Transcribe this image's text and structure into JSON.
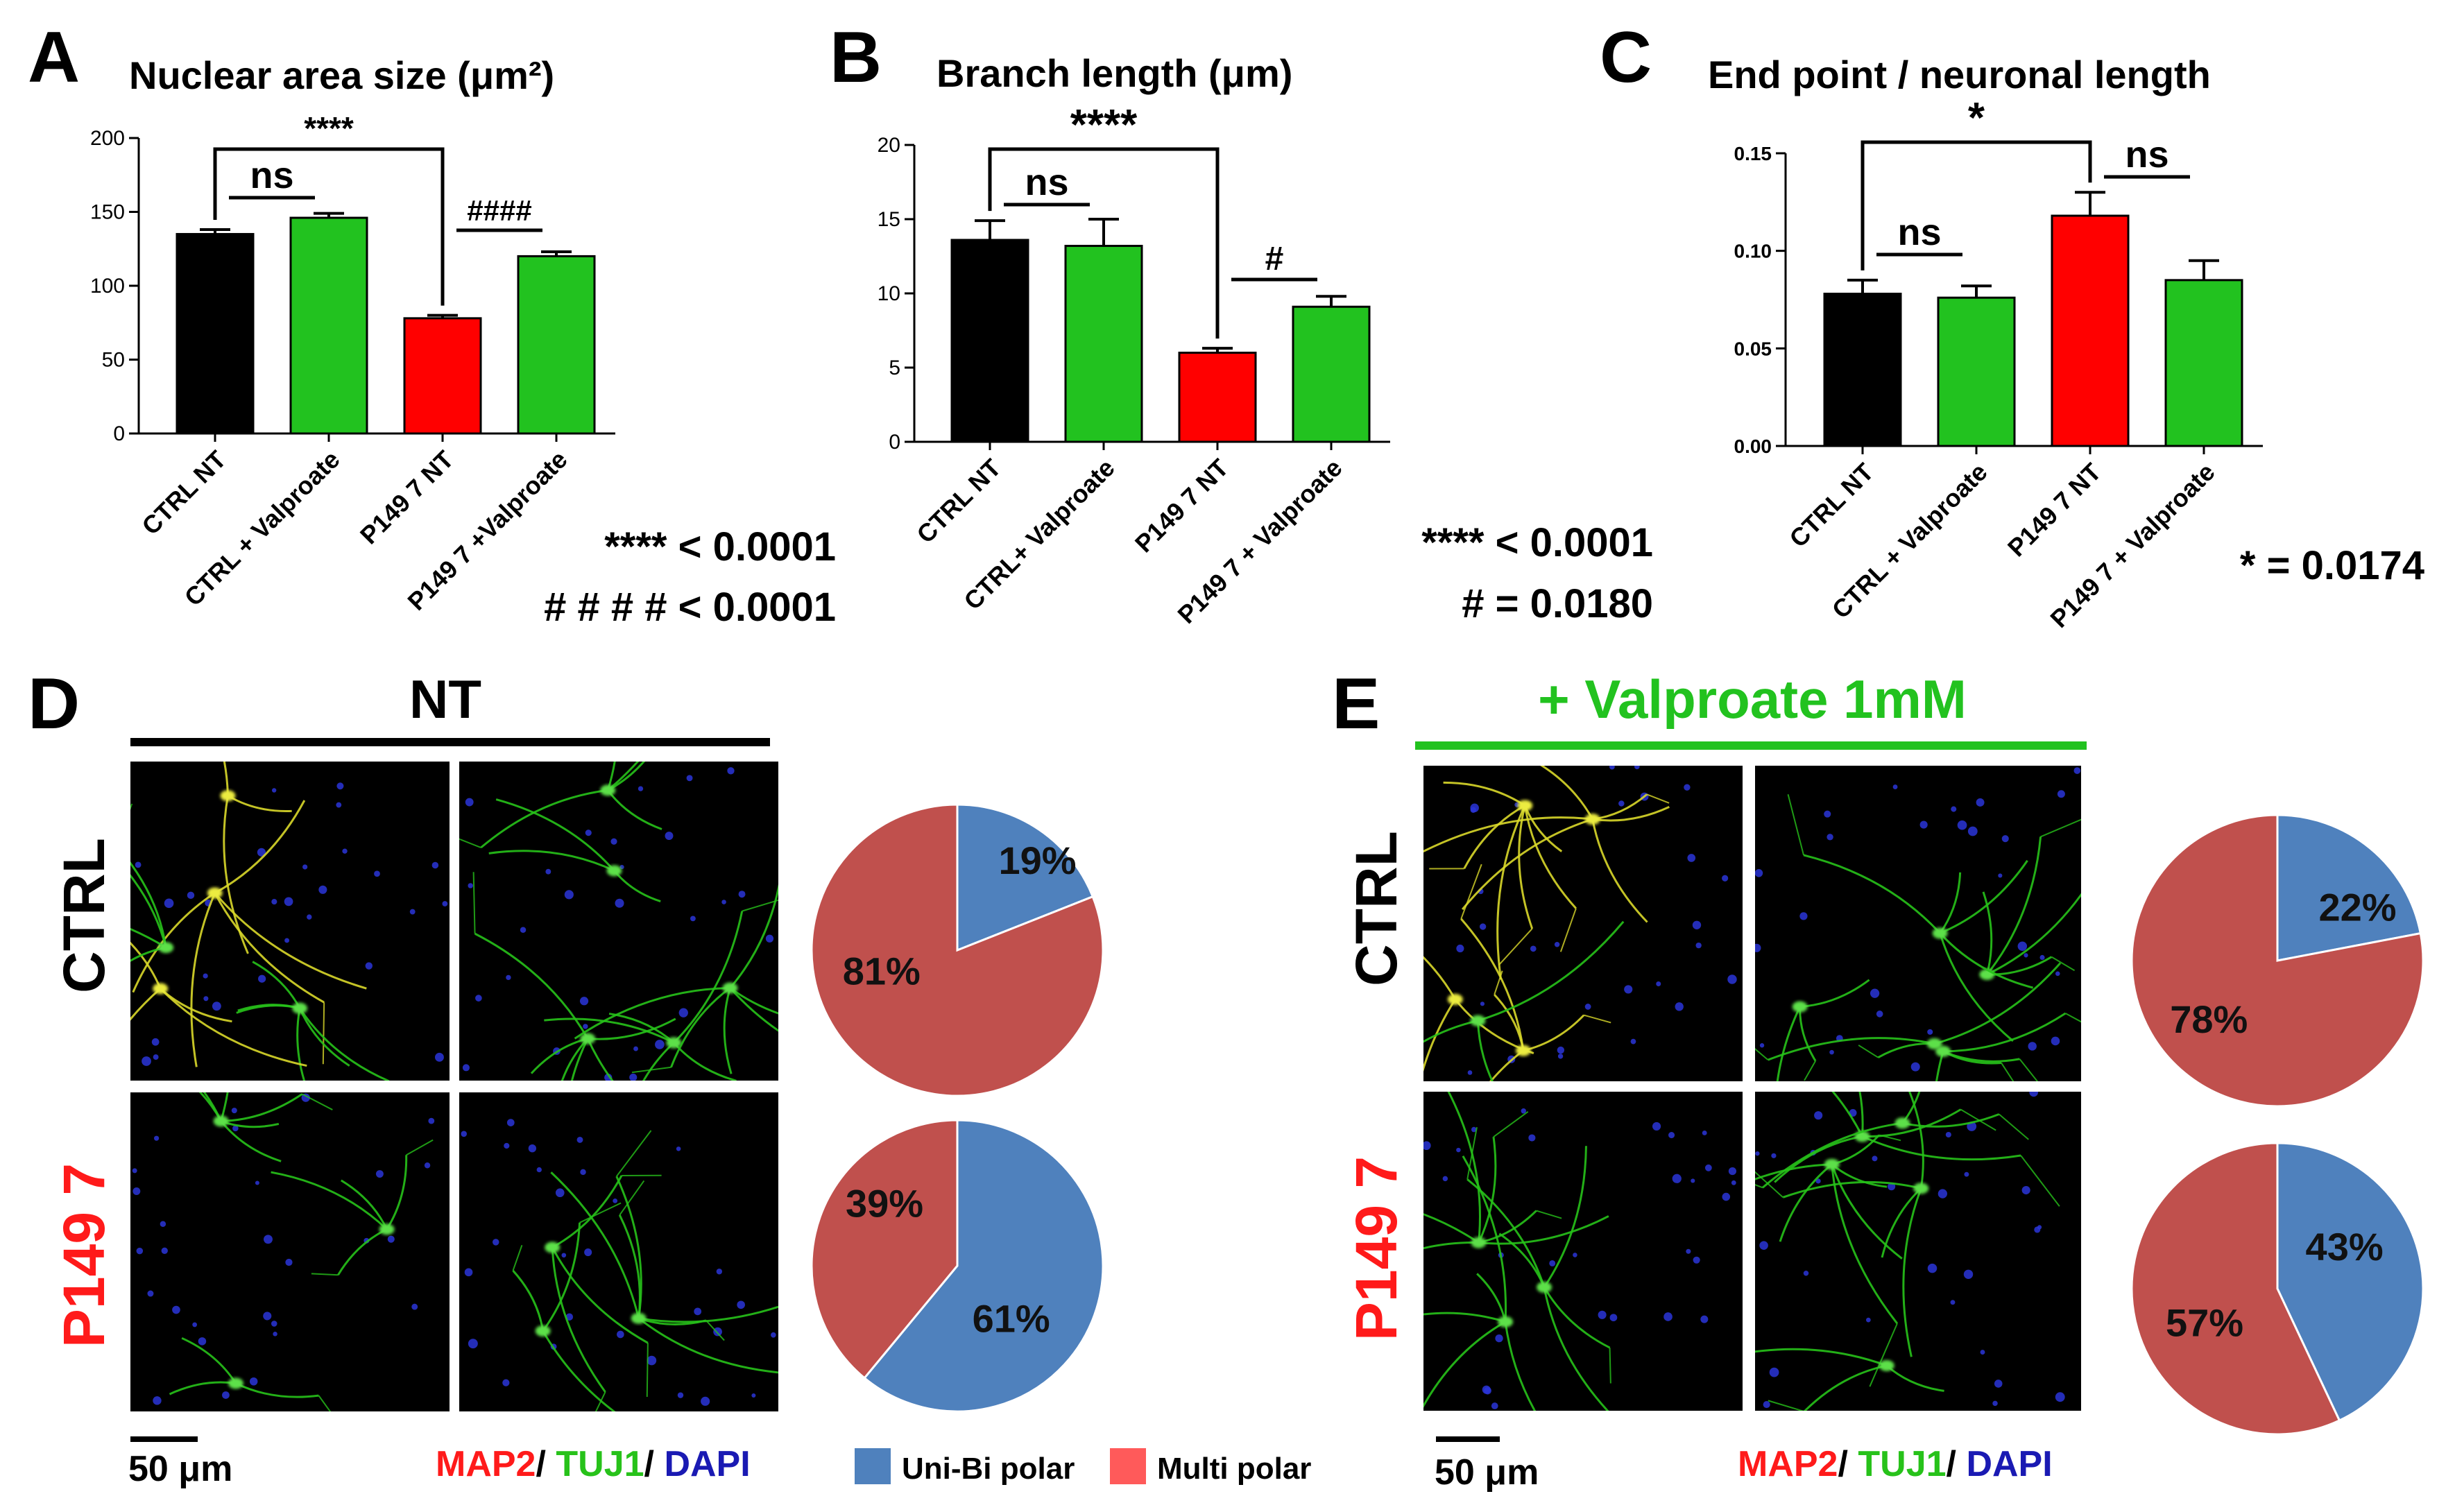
{
  "colors": {
    "black": "#000000",
    "green": "#22c21f",
    "red": "#ff0000",
    "pie_blue": "#4f81bd",
    "pie_red": "#c0504d",
    "label_red": "#ff1a1a",
    "label_green": "#27c21a",
    "label_blue": "#1a1ab3"
  },
  "chart_data": [
    {
      "panel": "A",
      "type": "bar",
      "title": "Nuclear area size (μm²)",
      "categories": [
        "CTRL NT",
        "CTRL + Valproate",
        "P149 7 NT",
        "P149 7 +Valproate"
      ],
      "values": [
        135,
        146,
        78,
        120
      ],
      "errors": [
        3,
        3,
        2,
        3
      ],
      "bar_colors": [
        "#000000",
        "#22c21f",
        "#ff0000",
        "#22c21f"
      ],
      "ylim": [
        0,
        200
      ],
      "yticks": [
        0,
        50,
        100,
        150,
        200
      ],
      "ytick_labels": [
        "0",
        "50",
        "100",
        "150",
        "200"
      ],
      "brackets": [
        {
          "from": 0,
          "to": 1,
          "label": "ns"
        },
        {
          "from": 0,
          "to": 2,
          "label": "****"
        },
        {
          "from": 2,
          "to": 3,
          "label": "####"
        }
      ],
      "notes": [
        "**** < 0.0001",
        "# # # # < 0.0001"
      ]
    },
    {
      "panel": "B",
      "type": "bar",
      "title": "Branch length (μm)",
      "categories": [
        "CTRL NT",
        "CTRL+ Valproate",
        "P149 7 NT",
        "P149 7 + Valproate"
      ],
      "values": [
        13.6,
        13.2,
        6.0,
        9.1
      ],
      "errors": [
        1.3,
        1.8,
        0.3,
        0.7
      ],
      "bar_colors": [
        "#000000",
        "#22c21f",
        "#ff0000",
        "#22c21f"
      ],
      "ylim": [
        0,
        20
      ],
      "yticks": [
        0,
        5,
        10,
        15,
        20
      ],
      "ytick_labels": [
        "0",
        "5",
        "10",
        "15",
        "20"
      ],
      "brackets": [
        {
          "from": 0,
          "to": 1,
          "label": "ns"
        },
        {
          "from": 0,
          "to": 2,
          "label": "****"
        },
        {
          "from": 2,
          "to": 3,
          "label": "#"
        }
      ],
      "notes": [
        "**** < 0.0001",
        "# = 0.0180"
      ]
    },
    {
      "panel": "C",
      "type": "bar",
      "title": "End point / neuronal length",
      "categories": [
        "CTRL NT",
        "CTRL + Valproate",
        "P149 7 NT",
        "P149 7  + Valproate"
      ],
      "values": [
        0.078,
        0.076,
        0.118,
        0.085
      ],
      "errors": [
        0.007,
        0.006,
        0.012,
        0.01
      ],
      "bar_colors": [
        "#000000",
        "#22c21f",
        "#ff0000",
        "#22c21f"
      ],
      "ylim": [
        0,
        0.15
      ],
      "yticks": [
        0,
        0.05,
        0.1,
        0.15
      ],
      "ytick_labels": [
        "0.00",
        "0.05",
        "0.10",
        "0.15"
      ],
      "brackets": [
        {
          "from": 0,
          "to": 1,
          "label": "ns"
        },
        {
          "from": 0,
          "to": 2,
          "label": "*"
        },
        {
          "from": 2,
          "to": 3,
          "label": "ns"
        }
      ],
      "notes": [
        "* = 0.0174"
      ]
    },
    {
      "panel": "D-CTRL",
      "type": "pie",
      "labels": [
        "Uni-Bi polar",
        "Multi polar"
      ],
      "values": [
        19,
        81
      ],
      "value_labels": [
        "19%",
        "81%"
      ]
    },
    {
      "panel": "D-P149 7",
      "type": "pie",
      "labels": [
        "Uni-Bi polar",
        "Multi polar"
      ],
      "values": [
        61,
        39
      ],
      "value_labels": [
        "61%",
        "39%"
      ]
    },
    {
      "panel": "E-CTRL",
      "type": "pie",
      "labels": [
        "Uni-Bi polar",
        "Multi polar"
      ],
      "values": [
        22,
        78
      ],
      "value_labels": [
        "22%",
        "78%"
      ]
    },
    {
      "panel": "E-P149 7",
      "type": "pie",
      "labels": [
        "Uni-Bi polar",
        "Multi polar"
      ],
      "values": [
        43,
        57
      ],
      "value_labels": [
        "43%",
        "57%"
      ]
    }
  ],
  "panel_letters": {
    "a": "A",
    "b": "B",
    "c": "C",
    "d": "D",
    "e": "E"
  },
  "panel_d": {
    "title": "NT",
    "row_ctrl": "CTRL",
    "row_mut": "P149 7"
  },
  "panel_e": {
    "title": "+ Valproate 1mM",
    "row_ctrl": "CTRL",
    "row_mut": "P149 7"
  },
  "scalebar": "50 μm",
  "stain": {
    "map2": "MAP2",
    "sep": "/ ",
    "tuj1": "TUJ1",
    "dapi": "DAPI"
  },
  "legend": {
    "uni": "Uni-Bi polar",
    "multi": "Multi polar"
  }
}
